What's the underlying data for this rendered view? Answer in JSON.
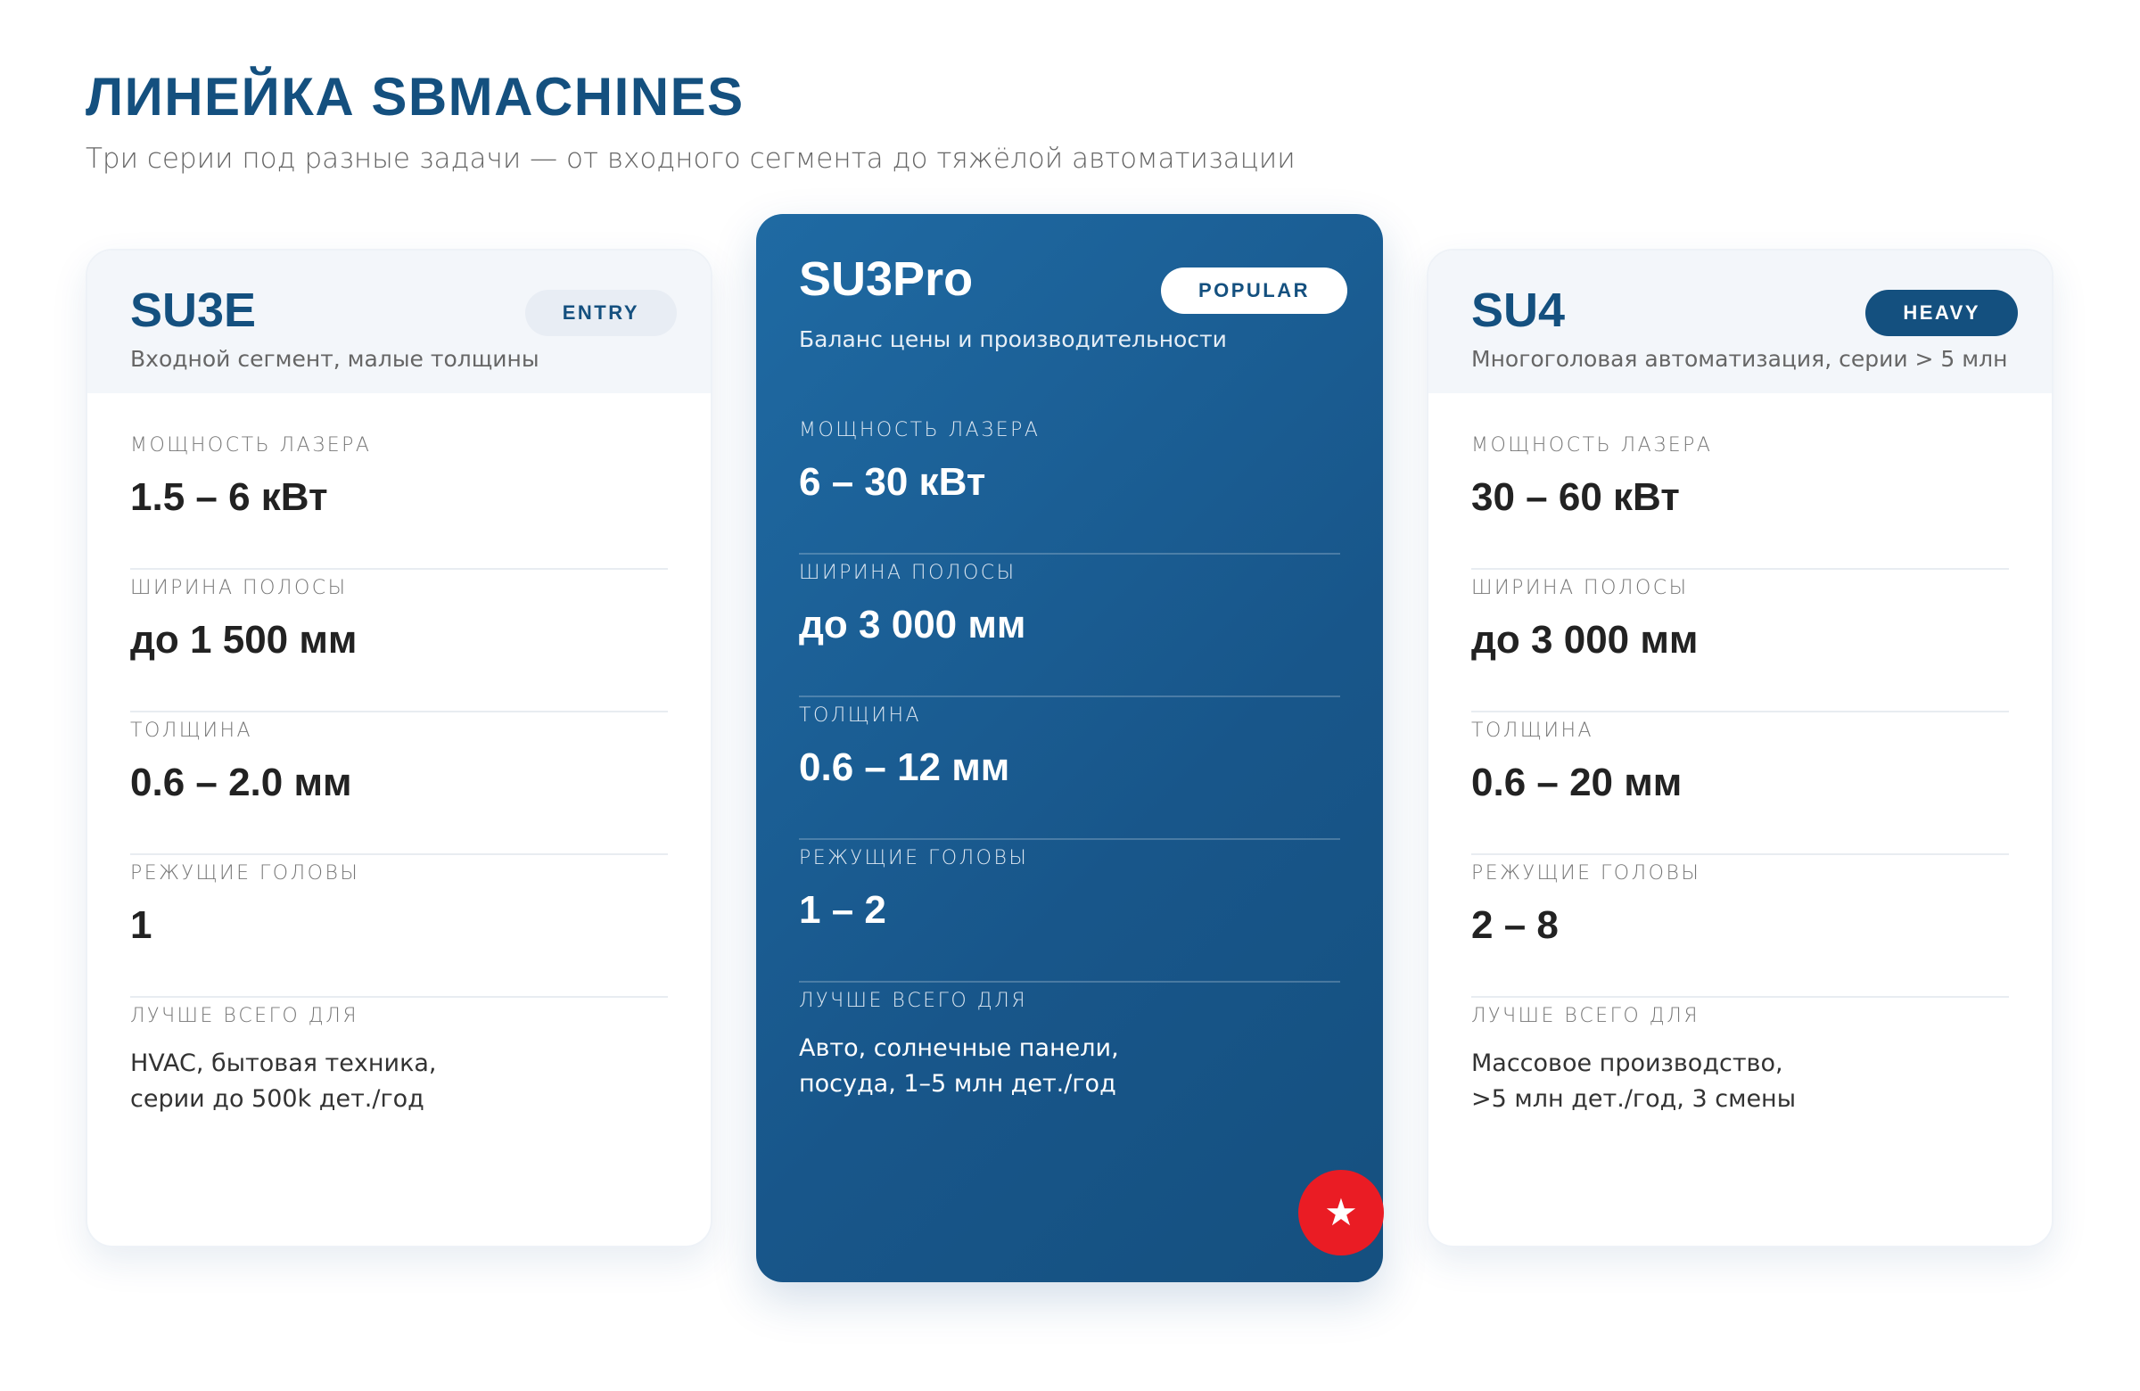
{
  "header": {
    "title": "ЛИНЕЙКА SBMACHINES",
    "subtitle": "Три серии под разные задачи — от входного сегмента до тяжёлой автоматизации"
  },
  "cards": [
    {
      "name": "SU3E",
      "badge": "ENTRY",
      "desc": "Входной сегмент, малые толщины",
      "specs": [
        {
          "label": "МОЩНОСТЬ ЛАЗЕРА",
          "value": "1.5 – 6 кВт"
        },
        {
          "label": "ШИРИНА ПОЛОСЫ",
          "value": "до 1 500 мм"
        },
        {
          "label": "ТОЛЩИНА",
          "value": "0.6 – 2.0 мм"
        },
        {
          "label": "РЕЖУЩИЕ ГОЛОВЫ",
          "value": "1"
        }
      ],
      "best_label": "ЛУЧШЕ ВСЕГО ДЛЯ",
      "best_lines": [
        "HVAC, бытовая техника,",
        "серии до 500k дет./год"
      ]
    },
    {
      "name": "SU3Pro",
      "badge": "POPULAR",
      "desc": "Баланс цены и производительности",
      "specs": [
        {
          "label": "МОЩНОСТЬ ЛАЗЕРА",
          "value": "6 – 30 кВт"
        },
        {
          "label": "ШИРИНА ПОЛОСЫ",
          "value": "до 3 000 мм"
        },
        {
          "label": "ТОЛЩИНА",
          "value": "0.6 – 12 мм"
        },
        {
          "label": "РЕЖУЩИЕ ГОЛОВЫ",
          "value": "1 – 2"
        }
      ],
      "best_label": "ЛУЧШЕ ВСЕГО ДЛЯ",
      "best_lines": [
        "Авто, солнечные панели,",
        "посуда, 1–5 млн дет./год"
      ],
      "featured_icon": "star-icon"
    },
    {
      "name": "SU4",
      "badge": "HEAVY",
      "desc": "Многоголовая автоматизация, серии > 5 млн",
      "specs": [
        {
          "label": "МОЩНОСТЬ ЛАЗЕРА",
          "value": "30 – 60 кВт"
        },
        {
          "label": "ШИРИНА ПОЛОСЫ",
          "value": "до 3 000 мм"
        },
        {
          "label": "ТОЛЩИНА",
          "value": "0.6 – 20 мм"
        },
        {
          "label": "РЕЖУЩИЕ ГОЛОВЫ",
          "value": "2 – 8"
        }
      ],
      "best_label": "ЛУЧШЕ ВСЕГО ДЛЯ",
      "best_lines": [
        "Массовое производство,",
        ">5 млн дет./год, 3 смены"
      ]
    }
  ],
  "colors": {
    "brand": "#14507f",
    "accent": "#ea1c24",
    "featured_bg": "#1a5d93"
  }
}
